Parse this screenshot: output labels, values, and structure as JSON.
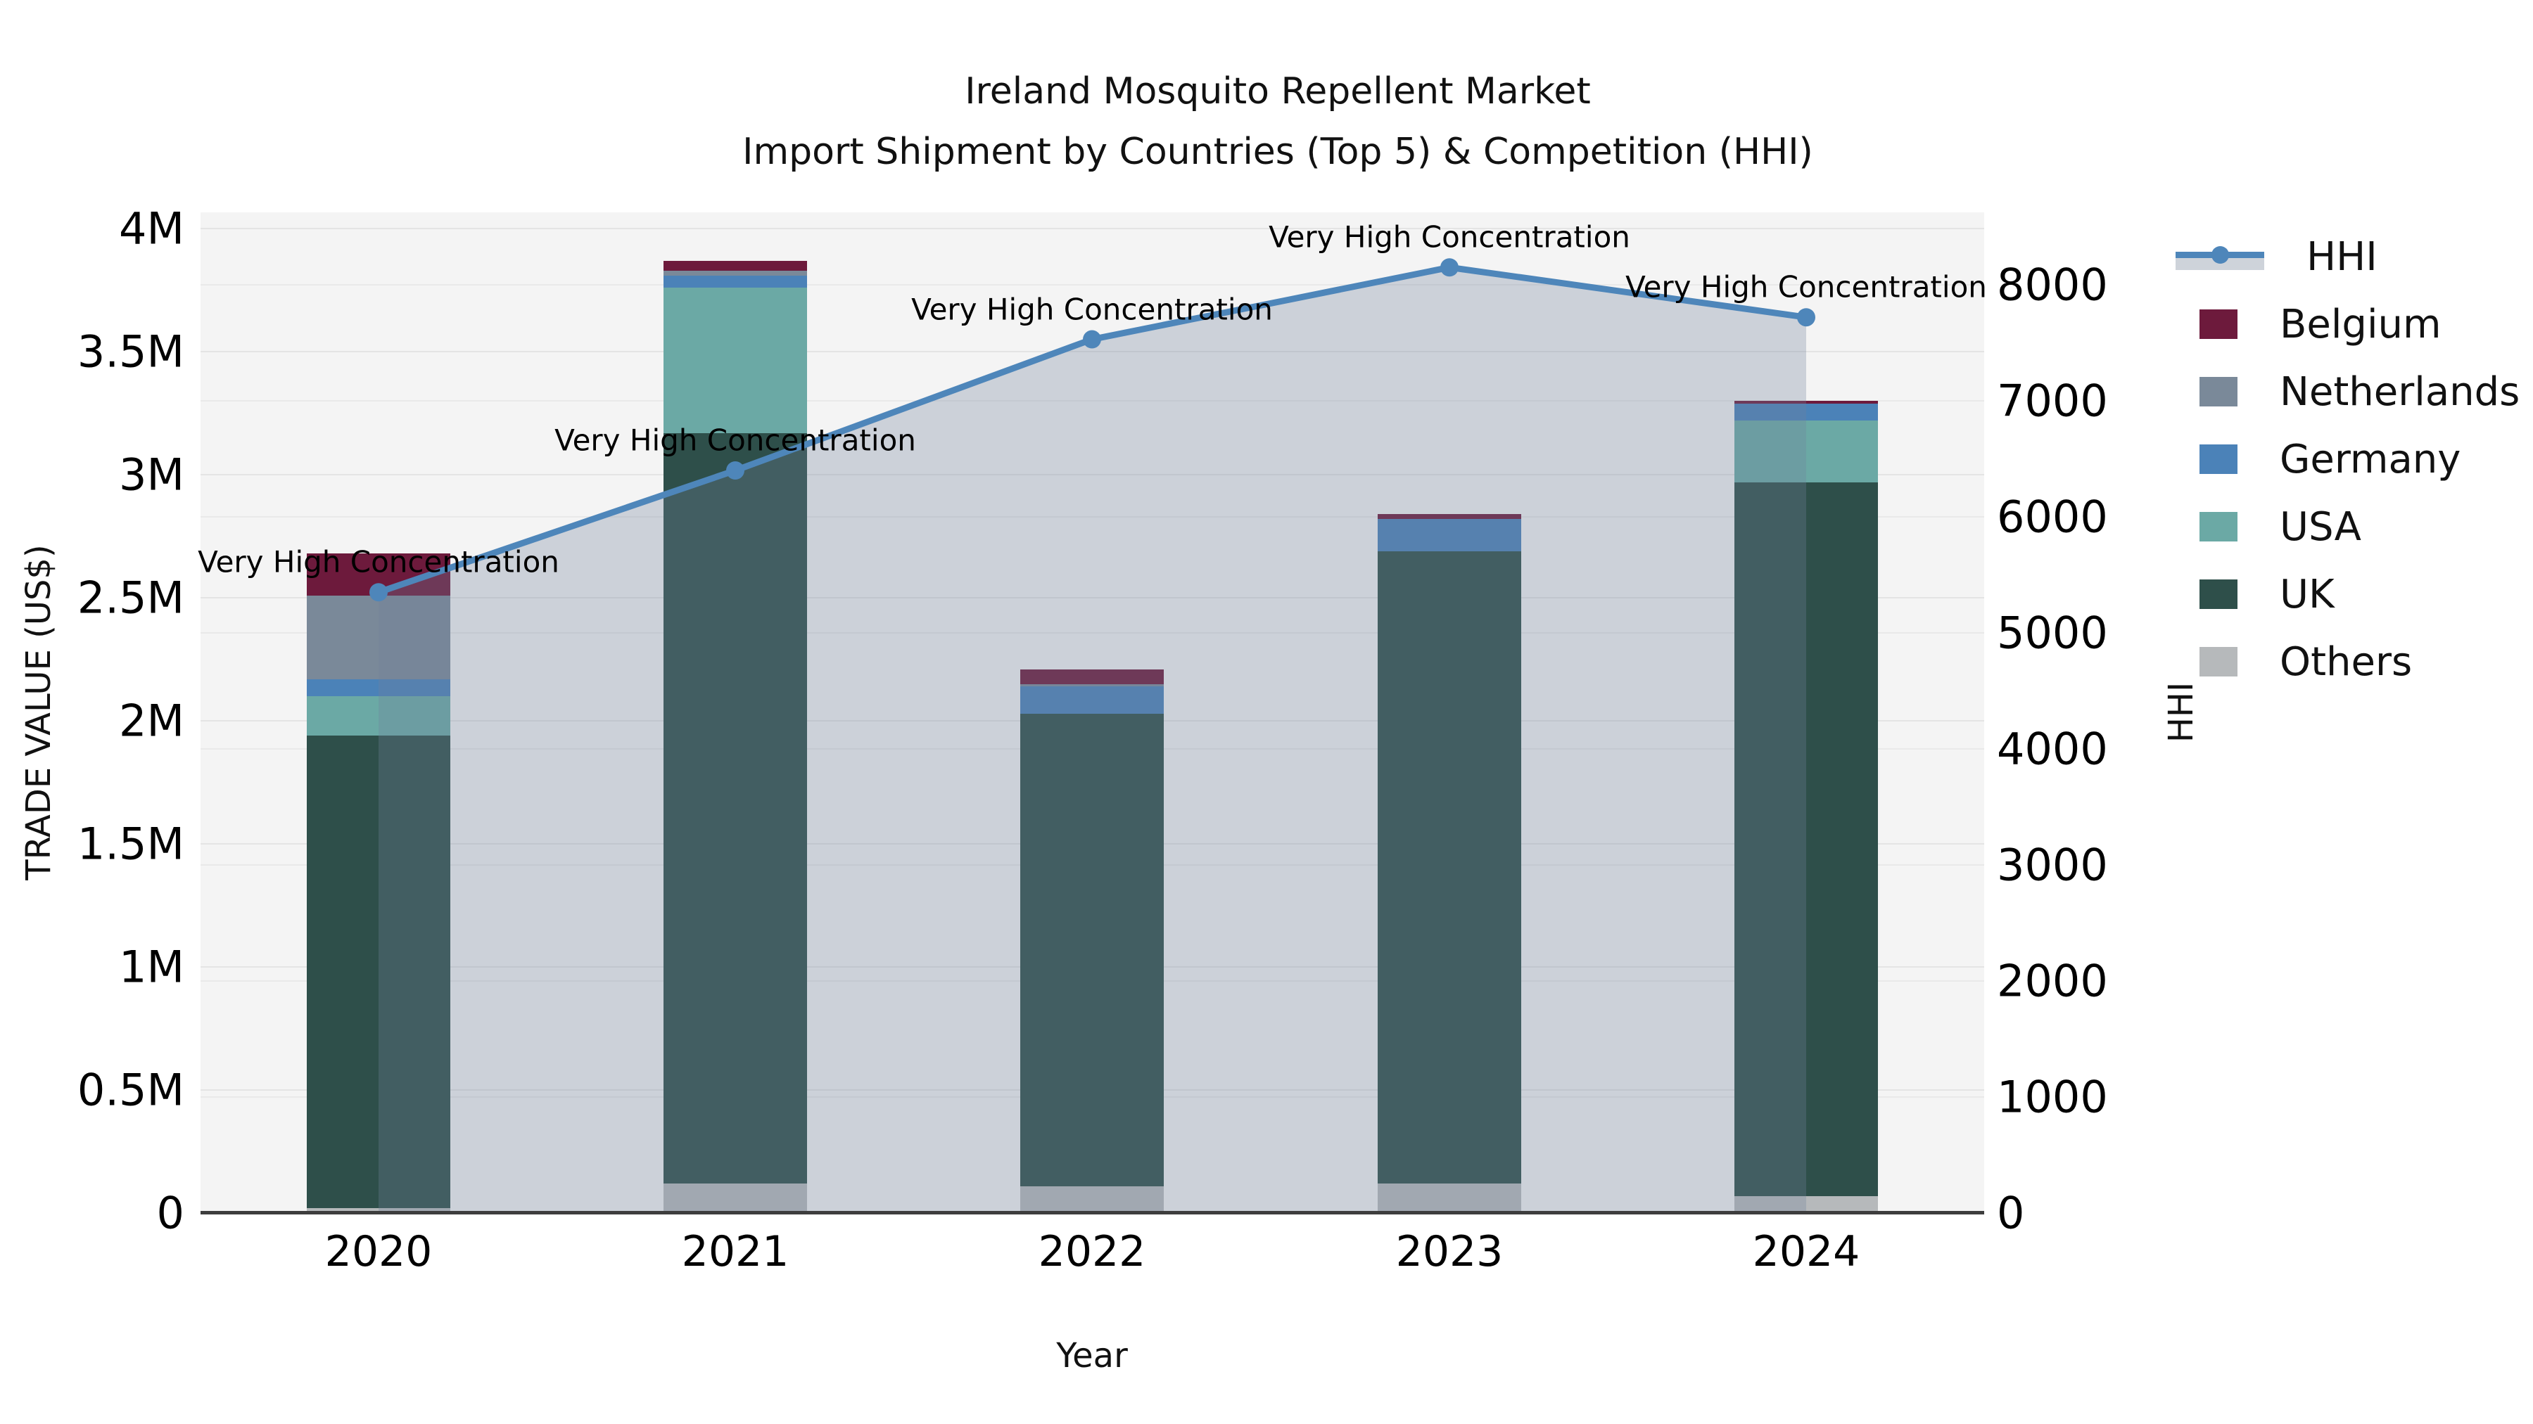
{
  "title": {
    "line1": "Ireland Mosquito Repellent Market",
    "line2": "Import Shipment by Countries (Top 5) & Competition (HHI)"
  },
  "axes": {
    "x_title": "Year",
    "y_left_title": "TRADE VALUE (US$)",
    "y_right_title": "HHI",
    "x_ticks": [
      "2020",
      "2021",
      "2022",
      "2023",
      "2024"
    ],
    "y_left_ticks": [
      {
        "label": "0",
        "value_m": 0
      },
      {
        "label": "0.5M",
        "value_m": 0.5
      },
      {
        "label": "1M",
        "value_m": 1
      },
      {
        "label": "1.5M",
        "value_m": 1.5
      },
      {
        "label": "2M",
        "value_m": 2
      },
      {
        "label": "2.5M",
        "value_m": 2.5
      },
      {
        "label": "3M",
        "value_m": 3
      },
      {
        "label": "3.5M",
        "value_m": 3.5
      },
      {
        "label": "4M",
        "value_m": 4
      }
    ],
    "y_right_ticks": [
      {
        "label": "0",
        "value": 0
      },
      {
        "label": "1000",
        "value": 1000
      },
      {
        "label": "2000",
        "value": 2000
      },
      {
        "label": "3000",
        "value": 3000
      },
      {
        "label": "4000",
        "value": 4000
      },
      {
        "label": "5000",
        "value": 5000
      },
      {
        "label": "6000",
        "value": 6000
      },
      {
        "label": "7000",
        "value": 7000
      },
      {
        "label": "8000",
        "value": 8000
      }
    ]
  },
  "legend": [
    {
      "label": "HHI",
      "type": "line",
      "color": "#4e86ba"
    },
    {
      "label": "Belgium",
      "type": "patch",
      "color": "#6d1a3c"
    },
    {
      "label": "Netherlands",
      "type": "patch",
      "color": "#7a8999"
    },
    {
      "label": "Germany",
      "type": "patch",
      "color": "#4b82b8"
    },
    {
      "label": "USA",
      "type": "patch",
      "color": "#6ba9a5"
    },
    {
      "label": "UK",
      "type": "patch",
      "color": "#2e4f4a"
    },
    {
      "label": "Others",
      "type": "patch",
      "color": "#b6b9bb"
    }
  ],
  "chart_data": {
    "type": "bar",
    "subtype": "stacked_bars_with_line_overlay_and_area",
    "title": "Ireland Mosquito Repellent Market — Import Shipment by Countries (Top 5) & Competition (HHI)",
    "xlabel": "Year",
    "ylabel": "TRADE VALUE (US$)",
    "ylabel_right": "HHI",
    "categories": [
      "2020",
      "2021",
      "2022",
      "2023",
      "2024"
    ],
    "unit_left": "million US$",
    "ylim_left_m": [
      0,
      4
    ],
    "ylim_right": [
      0,
      8624
    ],
    "grid": true,
    "legend_position": "right",
    "series": [
      {
        "name": "Others",
        "color": "#b6b9bb",
        "values_m": [
          0.02,
          0.12,
          0.11,
          0.12,
          0.07
        ]
      },
      {
        "name": "UK",
        "color": "#2e4f4a",
        "values_m": [
          1.92,
          3.05,
          1.92,
          2.57,
          2.9
        ]
      },
      {
        "name": "USA",
        "color": "#6ba9a5",
        "values_m": [
          0.16,
          0.59,
          0.0,
          0.0,
          0.25
        ]
      },
      {
        "name": "Germany",
        "color": "#4b82b8",
        "values_m": [
          0.07,
          0.05,
          0.11,
          0.13,
          0.07
        ]
      },
      {
        "name": "Netherlands",
        "color": "#7a8999",
        "values_m": [
          0.34,
          0.02,
          0.01,
          0.0,
          0.0
        ]
      },
      {
        "name": "Belgium",
        "color": "#6d1a3c",
        "values_m": [
          0.17,
          0.04,
          0.06,
          0.02,
          0.01
        ]
      }
    ],
    "bar_totals_m": [
      2.68,
      3.87,
      2.21,
      2.84,
      3.3
    ],
    "line": {
      "name": "HHI",
      "color": "#4e86ba",
      "area_fill": "rgba(114,130,157,0.30)",
      "marker": "circle",
      "values": [
        5350,
        6400,
        7530,
        8150,
        7720
      ]
    },
    "annotations": [
      {
        "text": "Very High Concentration",
        "category": "2020"
      },
      {
        "text": "Very High Concentration",
        "category": "2021"
      },
      {
        "text": "Very High Concentration",
        "category": "2022"
      },
      {
        "text": "Very High Concentration",
        "category": "2023"
      },
      {
        "text": "Very High Concentration",
        "category": "2024"
      }
    ]
  },
  "colors": {
    "plot_background": "#f4f4f4",
    "page_background": "#ffffff",
    "axis_line": "#3d3d3d",
    "gridline": "#e4e4e4",
    "hhi_line": "#4e86ba"
  }
}
